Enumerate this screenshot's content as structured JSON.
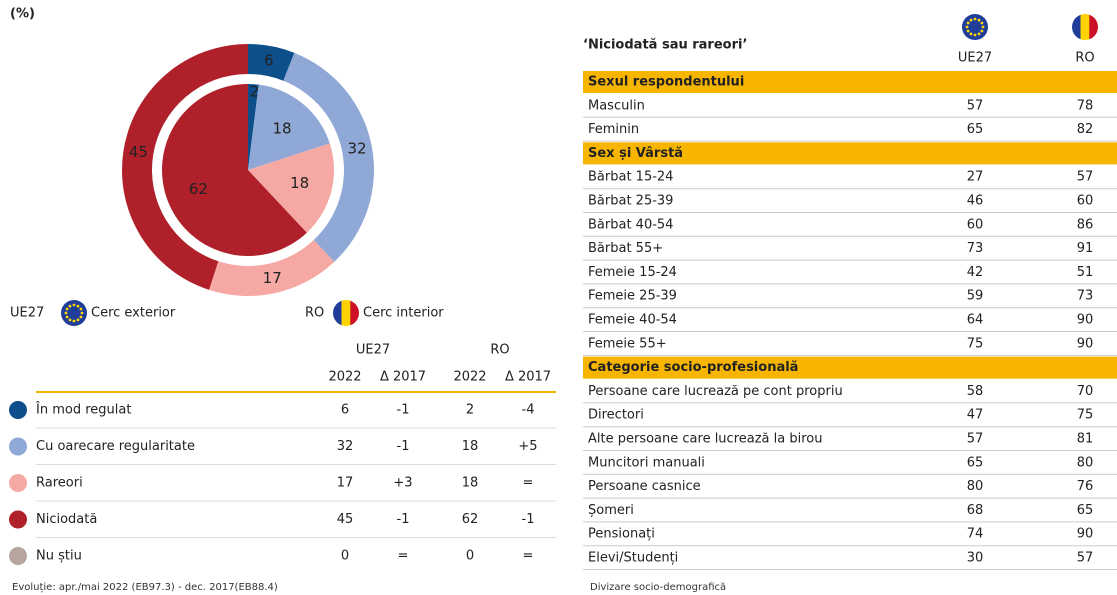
{
  "header": {
    "unit": "(%)"
  },
  "chart_data": {
    "type": "donut",
    "categories": [
      "În mod regulat",
      "Cu oarecare regularitate",
      "Rareori",
      "Niciodată",
      "Nu știu"
    ],
    "colors": [
      "#0d4f8b",
      "#8fa8d6",
      "#f5a8a4",
      "#b0202a",
      "#b7a69f"
    ],
    "series": [
      {
        "name": "UE27",
        "ring_label": "Cerc exterior",
        "values": [
          6,
          32,
          17,
          45,
          0
        ]
      },
      {
        "name": "RO",
        "ring_label": "Cerc interior",
        "values": [
          2,
          18,
          18,
          62,
          0
        ]
      }
    ]
  },
  "summary_table": {
    "subcolumns": [
      "2022",
      "Δ 2017"
    ],
    "deltas": [
      [
        "-1",
        "-1",
        "+3",
        "-1",
        "="
      ],
      [
        "-4",
        "+5",
        "=",
        "-1",
        "="
      ]
    ]
  },
  "breakdown_table": {
    "title": "‘Niciodată sau rareori’",
    "sections": [
      {
        "name": "Sexul respondentului",
        "rows": [
          [
            "Masculin",
            57,
            78
          ],
          [
            "Feminin",
            65,
            82
          ]
        ]
      },
      {
        "name": "Sex și Vârstă",
        "rows": [
          [
            "Bărbat 15-24",
            27,
            57
          ],
          [
            "Bărbat 25-39",
            46,
            60
          ],
          [
            "Bărbat 40-54",
            60,
            86
          ],
          [
            "Bărbat 55+",
            73,
            91
          ],
          [
            "Femeie 15-24",
            42,
            51
          ],
          [
            "Femeie 25-39",
            59,
            73
          ],
          [
            "Femeie 40-54",
            64,
            90
          ],
          [
            "Femeie 55+",
            75,
            90
          ]
        ]
      },
      {
        "name": "Categorie socio-profesională",
        "rows": [
          [
            "Persoane care lucrează pe cont propriu",
            58,
            70
          ],
          [
            "Directori",
            47,
            75
          ],
          [
            "Alte persoane care lucrează la birou",
            57,
            81
          ],
          [
            "Muncitori manuali",
            65,
            80
          ],
          [
            "Persoane casnice",
            80,
            76
          ],
          [
            "Șomeri",
            68,
            65
          ],
          [
            "Pensionați",
            74,
            90
          ],
          [
            "Elevi/Studenți",
            30,
            57
          ]
        ]
      }
    ]
  },
  "footnotes": {
    "left": "Evoluție: apr./mai 2022 (EB97.3) - dec. 2017(EB88.4)",
    "right": "Divizare socio-demografică"
  }
}
